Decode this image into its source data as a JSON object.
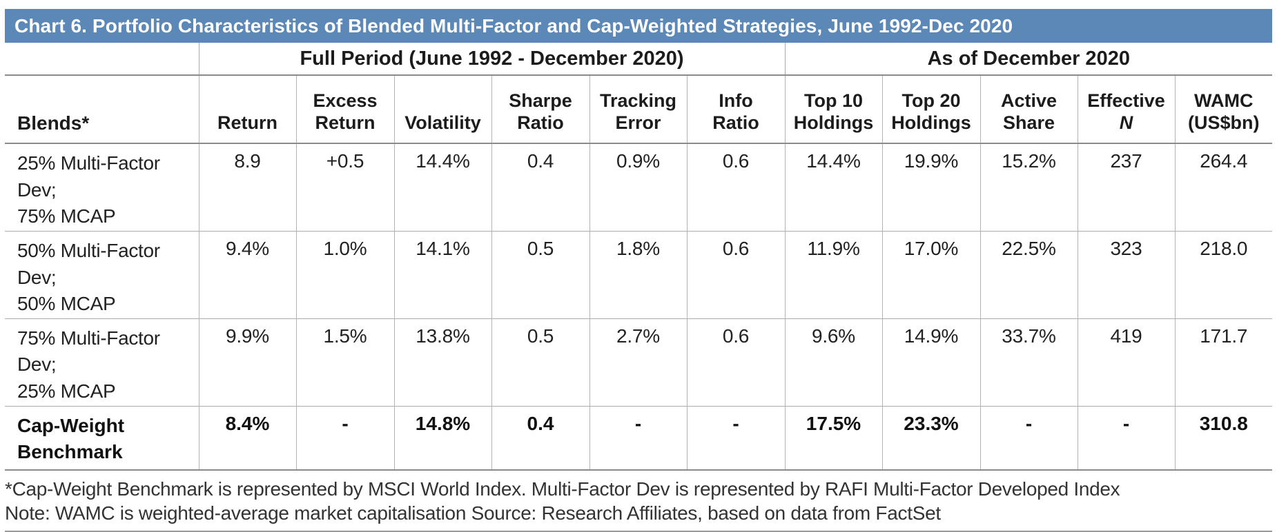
{
  "colors": {
    "title_bg": "#5b88b6",
    "title_text": "#ffffff",
    "major_rule": "#8a8a8a",
    "column_rule": "#b3b3b3",
    "row_rule": "#ababab"
  },
  "chart_data": {
    "type": "table",
    "title": "Chart 6. Portfolio Characteristics of Blended Multi-Factor and Cap-Weighted Strategies, June 1992-Dec 2020",
    "row_header": "Blends*",
    "column_groups": [
      {
        "label": "Full Period (June 1992 - December 2020)",
        "colspan": 6
      },
      {
        "label": "As of December 2020",
        "colspan": 5
      }
    ],
    "columns": [
      {
        "line1": "",
        "line2": "Return"
      },
      {
        "line1": "Excess",
        "line2": "Return"
      },
      {
        "line1": "",
        "line2": "Volatility"
      },
      {
        "line1": "Sharpe",
        "line2": "Ratio"
      },
      {
        "line1": "Tracking",
        "line2": "Error"
      },
      {
        "line1": "Info",
        "line2": "Ratio"
      },
      {
        "line1": "Top 10",
        "line2": "Holdings"
      },
      {
        "line1": "Top 20",
        "line2": "Holdings"
      },
      {
        "line1": "Active",
        "line2": "Share"
      },
      {
        "line1": "Effective",
        "line2": "N",
        "line2_italic": true
      },
      {
        "line1": "WAMC",
        "line2": "(US$bn)"
      }
    ],
    "rows": [
      {
        "label": "25% Multi-Factor Dev;\n75% MCAP",
        "bold": false,
        "values": [
          "8.9",
          "+0.5",
          "14.4%",
          "0.4",
          "0.9%",
          "0.6",
          "14.4%",
          "19.9%",
          "15.2%",
          "237",
          "264.4"
        ]
      },
      {
        "label": "50% Multi-Factor Dev;\n50% MCAP",
        "bold": false,
        "values": [
          "9.4%",
          "1.0%",
          "14.1%",
          "0.5",
          "1.8%",
          "0.6",
          "11.9%",
          "17.0%",
          "22.5%",
          "323",
          "218.0"
        ]
      },
      {
        "label": "75% Multi-Factor Dev;\n25% MCAP",
        "bold": false,
        "values": [
          "9.9%",
          "1.5%",
          "13.8%",
          "0.5",
          "2.7%",
          "0.6",
          "9.6%",
          "14.9%",
          "33.7%",
          "419",
          "171.7"
        ]
      },
      {
        "label": "Cap-Weight\nBenchmark",
        "bold": true,
        "values": [
          "8.4%",
          "-",
          "14.8%",
          "0.4",
          "-",
          "-",
          "17.5%",
          "23.3%",
          "-",
          "-",
          "310.8"
        ]
      }
    ],
    "footnotes": [
      "*Cap-Weight Benchmark is represented by MSCI World Index. Multi-Factor Dev is represented by RAFI Multi-Factor Developed Index",
      "Note: WAMC is weighted-average market capitalisation Source: Research Affiliates, based on data from FactSet"
    ]
  }
}
